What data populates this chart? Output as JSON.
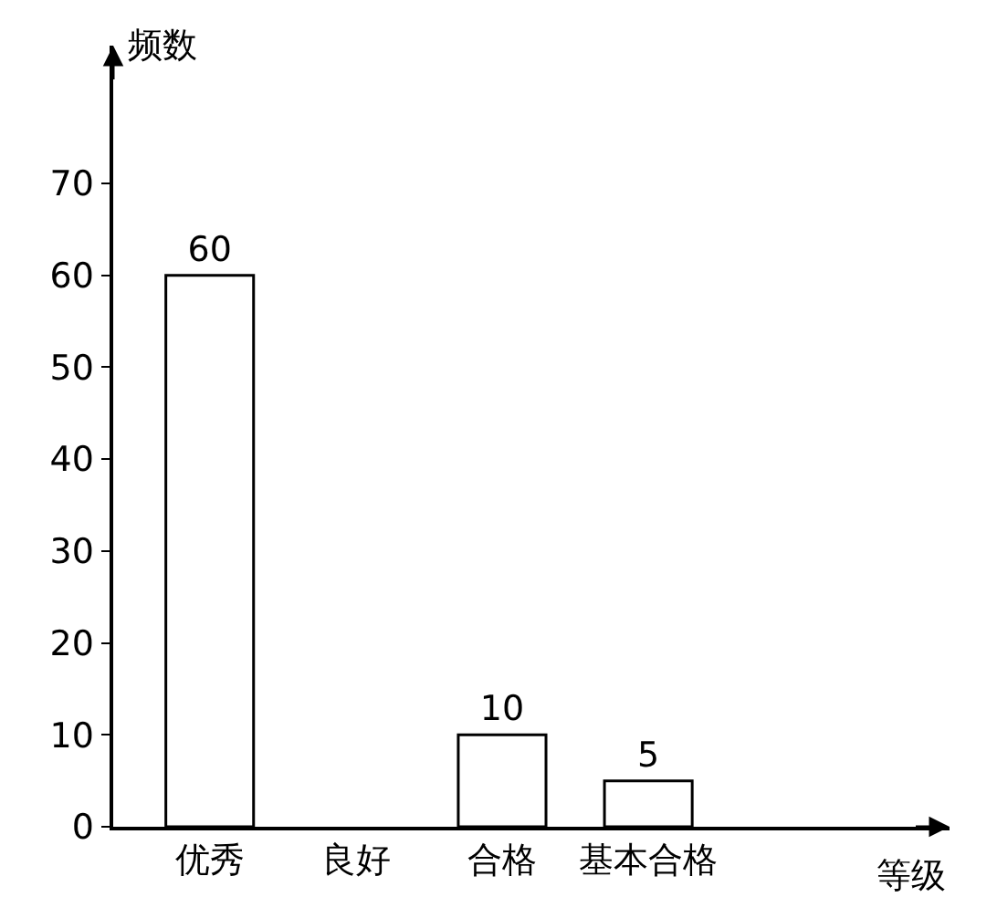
{
  "chart_data": {
    "type": "bar",
    "xlabel": "等级",
    "ylabel": "频数",
    "categories": [
      "优秀",
      "良好",
      "合格",
      "基本合格"
    ],
    "values": [
      60,
      null,
      10,
      5
    ],
    "color": "#ffffff",
    "data_labels": true,
    "ylim": [
      0,
      85
    ],
    "yticks": [
      0,
      10,
      20,
      30,
      40,
      50,
      60,
      70
    ]
  }
}
